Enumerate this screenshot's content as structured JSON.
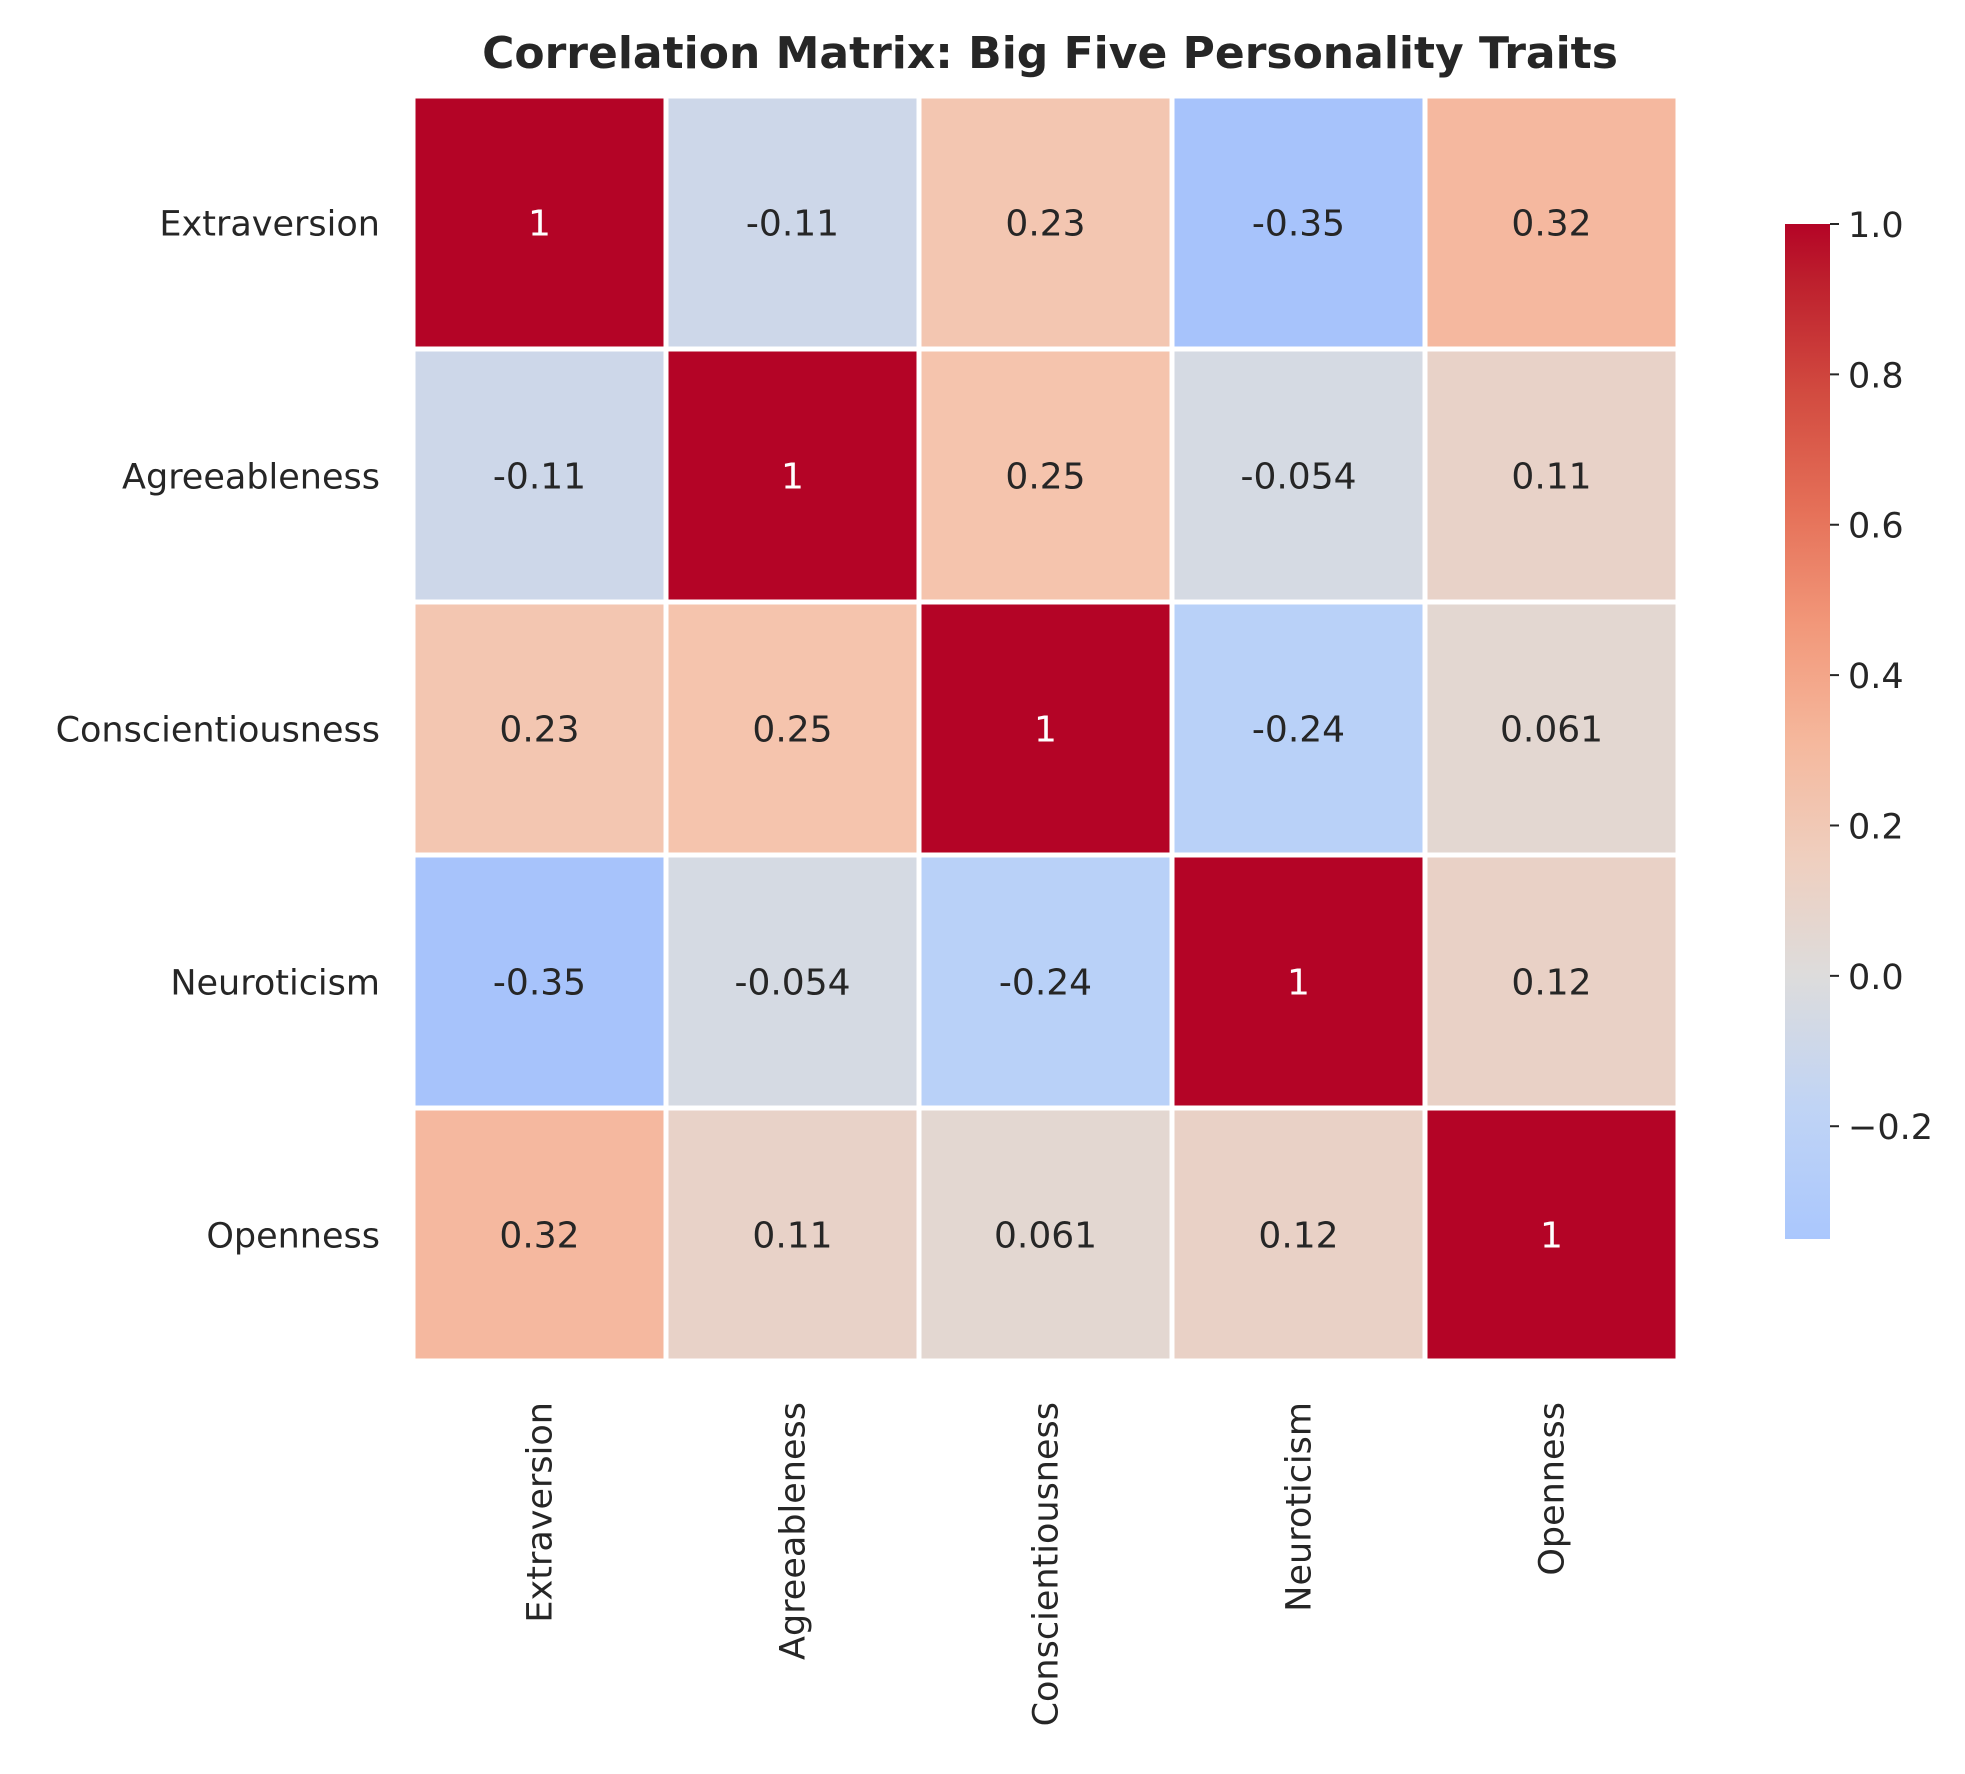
{
  "chart_data": {
    "type": "heatmap",
    "title": "Correlation Matrix: Big Five Personality Traits",
    "rows": [
      "Extraversion",
      "Agreeableness",
      "Conscientiousness",
      "Neuroticism",
      "Openness"
    ],
    "columns": [
      "Extraversion",
      "Agreeableness",
      "Conscientiousness",
      "Neuroticism",
      "Openness"
    ],
    "values": [
      [
        1,
        -0.11,
        0.23,
        -0.35,
        0.32
      ],
      [
        -0.11,
        1,
        0.25,
        -0.054,
        0.11
      ],
      [
        0.23,
        0.25,
        1,
        -0.24,
        0.061
      ],
      [
        -0.35,
        -0.054,
        -0.24,
        1,
        0.12
      ],
      [
        0.32,
        0.11,
        0.061,
        0.12,
        1
      ]
    ],
    "cell_labels": [
      [
        "1",
        "-0.11",
        "0.23",
        "-0.35",
        "0.32"
      ],
      [
        "-0.11",
        "1",
        "0.25",
        "-0.054",
        "0.11"
      ],
      [
        "0.23",
        "0.25",
        "1",
        "-0.24",
        "0.061"
      ],
      [
        "-0.35",
        "-0.054",
        "-0.24",
        "1",
        "0.12"
      ],
      [
        "0.32",
        "0.11",
        "0.061",
        "0.12",
        "1"
      ]
    ],
    "colormap": "coolwarm",
    "center": 0,
    "color_range": [
      -0.35,
      1.0
    ],
    "colorbar": {
      "ticks": [
        1.0,
        0.8,
        0.6,
        0.4,
        0.2,
        0.0,
        -0.2
      ],
      "tick_labels": [
        "1.0",
        "0.8",
        "0.6",
        "0.4",
        "0.2",
        "0.0",
        "−0.2"
      ]
    },
    "xlabel": "",
    "ylabel": "",
    "grid": false
  }
}
